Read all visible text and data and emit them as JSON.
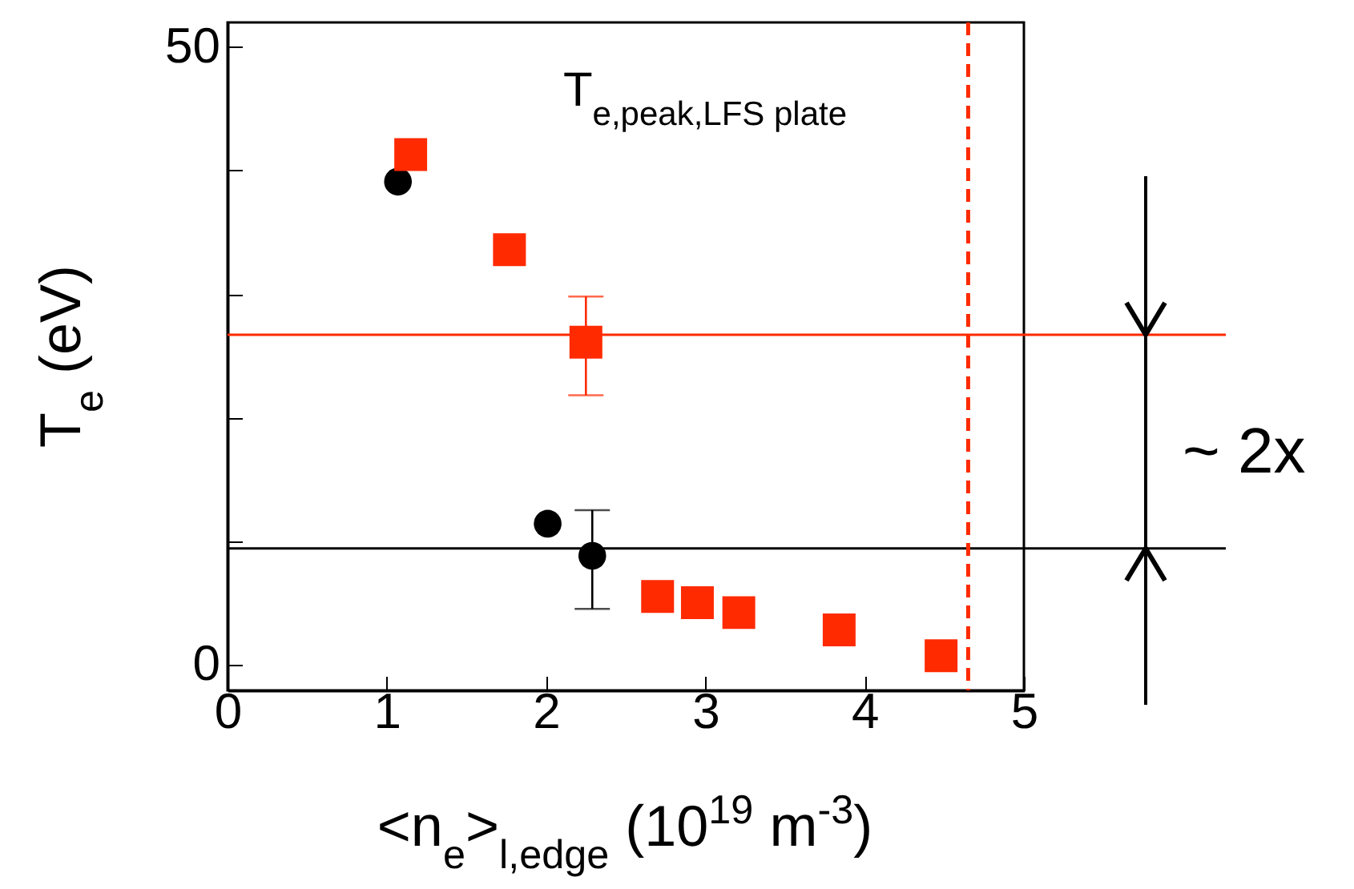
{
  "chart_data": {
    "type": "scatter",
    "title": "T$_{e,peak,LFS plate}$",
    "xlabel": "<n$_{e}$>$_{l,edge}$ (10$^{19}$ m$^{-3}$)",
    "ylabel": "T$_{e}$ (eV)",
    "annotations": [
      "~ 2x"
    ],
    "series": [
      {
        "color": "#000000",
        "marker": "circle",
        "x": [
          1.07,
          2.01,
          2.29
        ],
        "values": [
          39.1,
          11.4,
          8.8
        ],
        "errors": [
          null,
          null,
          [
            4.5,
            12.5
          ]
        ]
      },
      {
        "color": "#ff2a00",
        "marker": "square",
        "x": [
          1.15,
          1.77,
          2.25,
          2.7,
          2.95,
          3.21,
          3.84,
          4.48
        ],
        "values": [
          41.3,
          33.6,
          26.1,
          5.5,
          5.0,
          4.2,
          2.8,
          0.7
        ],
        "errors": [
          null,
          null,
          [
            21.8,
            29.8
          ],
          null,
          null,
          null,
          null,
          null
        ]
      }
    ],
    "ref_lines": [
      {
        "axis": "y",
        "value": 26.7,
        "color": "#ff2a00"
      },
      {
        "axis": "y",
        "value": 9.4,
        "color": "#000000"
      },
      {
        "axis": "x",
        "value": 4.65,
        "color": "#ff2a00",
        "line_style": "dashed"
      }
    ],
    "xlim": [
      0,
      5
    ],
    "xticks": [
      0,
      1,
      2,
      3,
      4,
      5
    ],
    "ylim": [
      -2.1,
      52
    ],
    "yticks": [
      0,
      {
        "value": 10,
        "label": null
      },
      {
        "value": 20,
        "label": null
      },
      {
        "value": 30,
        "label": null
      },
      {
        "value": 40,
        "label": null
      },
      50
    ],
    "grid": false
  }
}
